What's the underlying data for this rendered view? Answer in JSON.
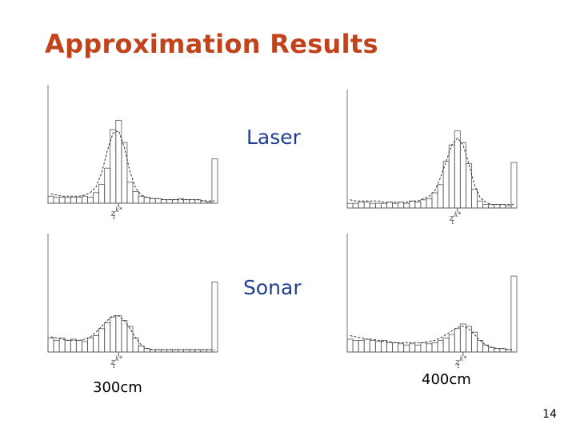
{
  "slide": {
    "title": "Approximation Results",
    "page_number": "14",
    "row_labels": {
      "laser": "Laser",
      "sonar": "Sonar"
    },
    "column_labels": {
      "left": "300cm",
      "right": "400cm"
    },
    "axis_marker": "z",
    "axis_marker_sup": "k*",
    "axis_marker_sub": "t"
  },
  "colors": {
    "title": "#c0431b",
    "row_label": "#1f3f8f",
    "plot_line": "#555555"
  },
  "chart_data": [
    {
      "type": "bar",
      "id": "laser-300cm",
      "values": [
        0.06,
        0.05,
        0.05,
        0.05,
        0.05,
        0.05,
        0.06,
        0.05,
        0.09,
        0.16,
        0.3,
        0.63,
        0.71,
        0.52,
        0.18,
        0.1,
        0.06,
        0.05,
        0.04,
        0.04,
        0.03,
        0.03,
        0.03,
        0.04,
        0.03,
        0.03,
        0.03,
        0.02,
        0.01,
        0.38
      ],
      "fit": [
        0.08,
        0.07,
        0.06,
        0.06,
        0.06,
        0.06,
        0.07,
        0.09,
        0.14,
        0.26,
        0.45,
        0.6,
        0.62,
        0.48,
        0.27,
        0.13,
        0.07,
        0.05,
        0.04,
        0.04,
        0.03,
        0.03,
        0.03,
        0.03,
        0.03,
        0.03,
        0.03,
        0.02,
        0.02,
        0.02
      ],
      "peak_index": 12,
      "ylim": [
        0,
        1
      ]
    },
    {
      "type": "bar",
      "id": "laser-400cm",
      "values": [
        0.04,
        0.04,
        0.05,
        0.05,
        0.04,
        0.04,
        0.04,
        0.05,
        0.04,
        0.05,
        0.04,
        0.06,
        0.05,
        0.07,
        0.08,
        0.13,
        0.2,
        0.4,
        0.54,
        0.66,
        0.56,
        0.38,
        0.16,
        0.06,
        0.03,
        0.03,
        0.03,
        0.03,
        0.02,
        0.39
      ],
      "fit": [
        0.07,
        0.06,
        0.06,
        0.06,
        0.06,
        0.06,
        0.05,
        0.05,
        0.05,
        0.05,
        0.05,
        0.06,
        0.06,
        0.08,
        0.1,
        0.15,
        0.26,
        0.4,
        0.54,
        0.6,
        0.54,
        0.38,
        0.2,
        0.09,
        0.05,
        0.03,
        0.03,
        0.03,
        0.03,
        0.03
      ],
      "peak_index": 19,
      "ylim": [
        0,
        1
      ]
    },
    {
      "type": "bar",
      "id": "sonar-300cm",
      "values": [
        0.12,
        0.1,
        0.12,
        0.1,
        0.11,
        0.1,
        0.09,
        0.12,
        0.14,
        0.2,
        0.25,
        0.3,
        0.31,
        0.27,
        0.22,
        0.12,
        0.05,
        0.03,
        0.02,
        0.02,
        0.02,
        0.02,
        0.02,
        0.02,
        0.02,
        0.02,
        0.02,
        0.02,
        0.02,
        0.6
      ],
      "fit": [
        0.13,
        0.12,
        0.11,
        0.1,
        0.1,
        0.1,
        0.11,
        0.13,
        0.17,
        0.22,
        0.27,
        0.31,
        0.31,
        0.27,
        0.2,
        0.12,
        0.06,
        0.03,
        0.02,
        0.02,
        0.02,
        0.02,
        0.02,
        0.02,
        0.02,
        0.02,
        0.02,
        0.02,
        0.02,
        0.02
      ],
      "peak_index": 12,
      "ylim": [
        0,
        1
      ]
    },
    {
      "type": "bar",
      "id": "sonar-400cm",
      "values": [
        0.11,
        0.1,
        0.1,
        0.11,
        0.1,
        0.09,
        0.1,
        0.08,
        0.08,
        0.07,
        0.06,
        0.07,
        0.06,
        0.08,
        0.07,
        0.08,
        0.1,
        0.12,
        0.15,
        0.2,
        0.24,
        0.22,
        0.17,
        0.1,
        0.06,
        0.04,
        0.03,
        0.03,
        0.02,
        0.65
      ],
      "fit": [
        0.14,
        0.13,
        0.12,
        0.11,
        0.11,
        0.1,
        0.09,
        0.09,
        0.08,
        0.08,
        0.08,
        0.08,
        0.08,
        0.08,
        0.09,
        0.1,
        0.12,
        0.15,
        0.18,
        0.21,
        0.22,
        0.2,
        0.15,
        0.1,
        0.06,
        0.04,
        0.03,
        0.03,
        0.02,
        0.02
      ],
      "peak_index": 20,
      "ylim": [
        0,
        1
      ]
    }
  ]
}
